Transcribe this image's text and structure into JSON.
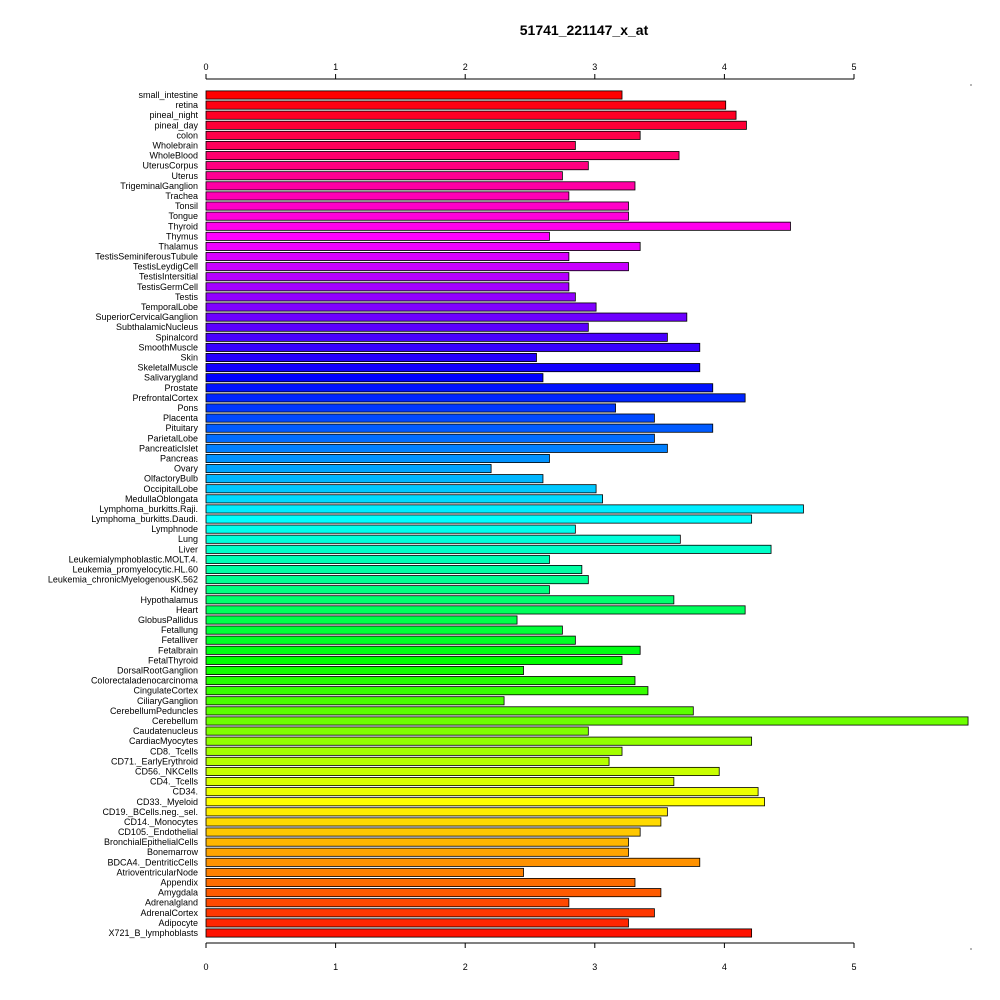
{
  "chart_data": {
    "type": "bar",
    "orientation": "horizontal",
    "title": "51741_221147_x_at",
    "xlabel": "",
    "ylabel": "",
    "x_ticks": [
      "0",
      "1",
      "2",
      "3",
      "4",
      "5"
    ],
    "xlim": [
      0,
      5.88
    ],
    "grid": false,
    "legend": "none",
    "bar_colors": "rainbow gradient from red (top) through magenta, blue, cyan, green, yellow, orange to red (bottom)",
    "categories": [
      "small_intestine",
      "retina",
      "pineal_night",
      "pineal_day",
      "colon",
      "Wholebrain",
      "WholeBlood",
      "UterusCorpus",
      "Uterus",
      "TrigeminalGanglion",
      "Trachea",
      "Tonsil",
      "Tongue",
      "Thyroid",
      "Thymus",
      "Thalamus",
      "TestisSeminiferousTubule",
      "TestisLeydigCell",
      "TestisIntersitial",
      "TestisGermCell",
      "Testis",
      "TemporalLobe",
      "SuperiorCervicalGanglion",
      "SubthalamicNucleus",
      "Spinalcord",
      "SmoothMuscle",
      "Skin",
      "SkeletalMuscle",
      "Salivarygland",
      "Prostate",
      "PrefrontalCortex",
      "Pons",
      "Placenta",
      "Pituitary",
      "ParietalLobe",
      "PancreaticIslet",
      "Pancreas",
      "Ovary",
      "OlfactoryBulb",
      "OccipitalLobe",
      "MedullaOblongata",
      "Lymphoma_burkitts.Raji.",
      "Lymphoma_burkitts.Daudi.",
      "Lymphnode",
      "Lung",
      "Liver",
      "Leukemialymphoblastic.MOLT.4.",
      "Leukemia_promyelocytic.HL.60",
      "Leukemia_chronicMyelogenousK.562",
      "Kidney",
      "Hypothalamus",
      "Heart",
      "GlobusPallidus",
      "Fetallung",
      "Fetalliver",
      "Fetalbrain",
      "FetalThyroid",
      "DorsalRootGanglion",
      "Colorectaladenocarcinoma",
      "CingulateCortex",
      "CiliaryGanglion",
      "CerebellumPeduncles",
      "Cerebellum",
      "Caudatenucleus",
      "CardiacMyocytes",
      "CD8._Tcells",
      "CD71._EarlyErythroid",
      "CD56._NKCells",
      "CD4._Tcells",
      "CD34.",
      "CD33._Myeloid",
      "CD19._BCells.neg._sel.",
      "CD14._Monocytes",
      "CD105._Endothelial",
      "BronchialEpithelialCells",
      "Bonemarrow",
      "BDCA4._DentriticCells",
      "AtrioventricularNode",
      "Appendix",
      "Amygdala",
      "Adrenalgland",
      "AdrenalCortex",
      "Adipocyte",
      "X721_B_lymphoblasts"
    ],
    "values": [
      3.21,
      4.01,
      4.09,
      4.17,
      3.35,
      2.85,
      3.65,
      2.95,
      2.75,
      3.31,
      2.8,
      3.26,
      3.26,
      4.51,
      2.65,
      3.35,
      2.8,
      3.26,
      2.8,
      2.8,
      2.85,
      3.01,
      3.71,
      2.95,
      3.56,
      3.81,
      2.55,
      3.81,
      2.6,
      3.91,
      4.16,
      3.16,
      3.46,
      3.91,
      3.46,
      3.56,
      2.65,
      2.2,
      2.6,
      3.01,
      3.06,
      4.61,
      4.21,
      2.85,
      3.66,
      4.36,
      2.65,
      2.9,
      2.95,
      2.65,
      3.61,
      4.16,
      2.4,
      2.75,
      2.85,
      3.35,
      3.21,
      2.45,
      3.31,
      3.41,
      2.3,
      3.76,
      5.88,
      2.95,
      4.21,
      3.21,
      3.11,
      3.96,
      3.61,
      4.26,
      4.31,
      3.56,
      3.51,
      3.35,
      3.26,
      3.26,
      3.81,
      2.45,
      3.31,
      3.51,
      2.8,
      3.46,
      3.26,
      4.21
    ]
  }
}
